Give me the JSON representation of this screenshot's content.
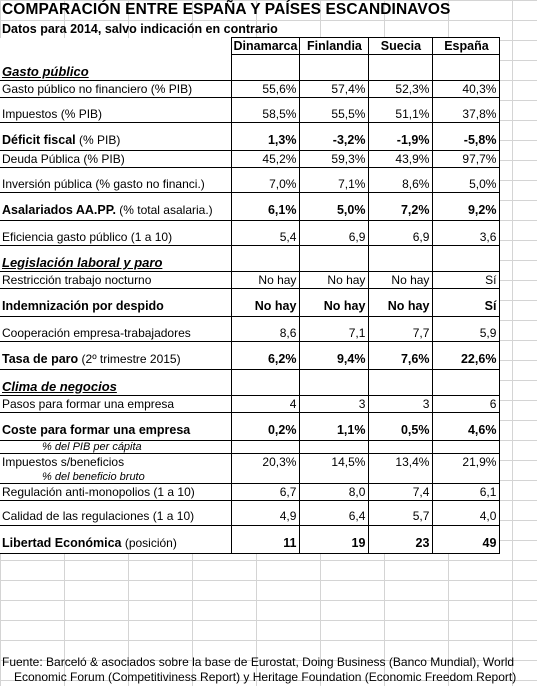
{
  "title": "COMPARACIÓN ENTRE ESPAÑA Y PAÍSES ESCANDINAVOS",
  "subtitle": "Datos para 2014, salvo indicación en contrario",
  "columns": [
    "Dinamarca",
    "Finlandia",
    "Suecia",
    "España"
  ],
  "rows": [
    {
      "type": "header"
    },
    {
      "type": "spacer"
    },
    {
      "type": "section",
      "label": "Gasto público"
    },
    {
      "type": "data",
      "label": "Gasto público no financiero (% PIB)",
      "values": [
        "55,6%",
        "57,4%",
        "52,3%",
        "40,3%"
      ]
    },
    {
      "type": "spacer"
    },
    {
      "type": "data",
      "label": "Impuestos (% PIB)",
      "values": [
        "58,5%",
        "55,5%",
        "51,1%",
        "37,8%"
      ]
    },
    {
      "type": "spacer"
    },
    {
      "type": "bold",
      "label": "Déficit fiscal",
      "suffix": " (% PIB)",
      "values": [
        "1,3%",
        "-3,2%",
        "-1,9%",
        "-5,8%"
      ]
    },
    {
      "type": "data",
      "label": "Deuda Pública (% PIB)",
      "values": [
        "45,2%",
        "59,3%",
        "43,9%",
        "97,7%"
      ]
    },
    {
      "type": "spacer"
    },
    {
      "type": "data",
      "label": "Inversión pública (% gasto no financi.)",
      "values": [
        "7,0%",
        "7,1%",
        "8,6%",
        "5,0%"
      ]
    },
    {
      "type": "spacer"
    },
    {
      "type": "bold",
      "label": "Asalariados AA.PP.",
      "suffix": " (% total asalaria.)",
      "values": [
        "6,1%",
        "5,0%",
        "7,2%",
        "9,2%"
      ]
    },
    {
      "type": "spacer"
    },
    {
      "type": "data",
      "label": "Eficiencia gasto público (1 a 10)",
      "values": [
        "5,4",
        "6,9",
        "6,9",
        "3,6"
      ]
    },
    {
      "type": "spacer"
    },
    {
      "type": "section",
      "label": "Legislación laboral y paro"
    },
    {
      "type": "data",
      "label": "Restricción trabajo nocturno",
      "values": [
        "No hay",
        "No hay",
        "No hay",
        "Sí"
      ]
    },
    {
      "type": "spacer"
    },
    {
      "type": "bold",
      "label": "Indemnización por despido",
      "suffix": "",
      "values": [
        "No hay",
        "No hay",
        "No hay",
        "Sí"
      ]
    },
    {
      "type": "spacer"
    },
    {
      "type": "data",
      "label": "Cooperación empresa-trabajadores",
      "values": [
        "8,6",
        "7,1",
        "7,7",
        "5,9"
      ]
    },
    {
      "type": "spacer"
    },
    {
      "type": "bold",
      "label": "Tasa de paro",
      "suffix": " (2º trimestre 2015)",
      "values": [
        "6,2%",
        "9,4%",
        "7,6%",
        "22,6%"
      ]
    },
    {
      "type": "spacer"
    },
    {
      "type": "section",
      "label": "Clima de negocios"
    },
    {
      "type": "data",
      "label": "Pasos para formar una empresa",
      "values": [
        "4",
        "3",
        "3",
        "6"
      ]
    },
    {
      "type": "spacer"
    },
    {
      "type": "bold",
      "label": "Coste para formar una empresa",
      "suffix": "",
      "values": [
        "0,2%",
        "1,1%",
        "0,5%",
        "4,6%"
      ]
    },
    {
      "type": "note",
      "label": "% del PIB per cápita"
    },
    {
      "type": "data",
      "label": "Impuestos s/beneficios",
      "values": [
        "20,3%",
        "14,5%",
        "13,4%",
        "21,9%"
      ],
      "noline": true
    },
    {
      "type": "note",
      "label": "% del beneficio bruto"
    },
    {
      "type": "data",
      "label": "Regulación anti-monopolios (1 a 10)",
      "values": [
        "6,7",
        "8,0",
        "7,4",
        "6,1"
      ]
    },
    {
      "type": "spacer"
    },
    {
      "type": "data",
      "label": "Calidad de las regulaciones (1 a 10)",
      "values": [
        "4,9",
        "6,4",
        "5,7",
        "4,0"
      ]
    },
    {
      "type": "spacer"
    },
    {
      "type": "bold",
      "label": "Libertad Económica",
      "suffix": " (posición)",
      "values": [
        "11",
        "19",
        "23",
        "49"
      ],
      "last": true
    }
  ],
  "source_line1": "Fuente: Barceló & asociados sobre la base de Eurostat, Doing Business (Banco Mundial), World",
  "source_line2": "Economic Forum (Competitiviness Report) y Heritage Foundation (Economic Freedom Report)"
}
